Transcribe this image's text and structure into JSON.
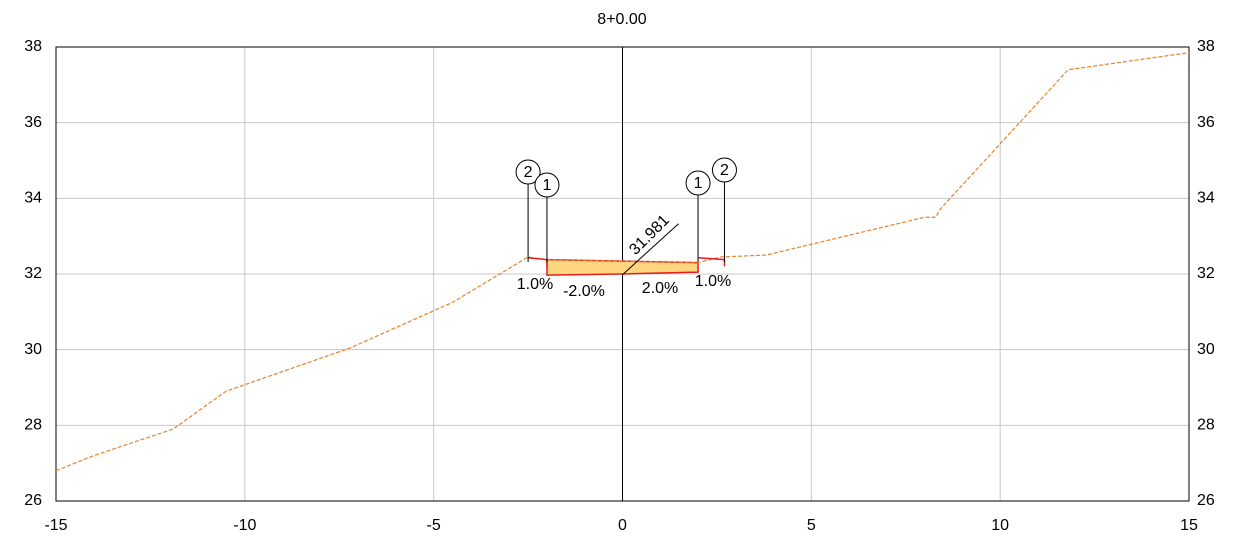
{
  "chart_data": {
    "type": "line",
    "title": "8+0.00",
    "xlim": [
      -15,
      15
    ],
    "ylim": [
      26,
      38
    ],
    "xticks": [
      -15,
      -10,
      -5,
      0,
      5,
      10,
      15
    ],
    "yticks": [
      26,
      28,
      30,
      32,
      34,
      36,
      38
    ],
    "grid": true,
    "series": [
      {
        "color": "#e8822a",
        "x": [
          -15,
          -14,
          -11.9,
          -10.5,
          -7.2,
          -4.5,
          -2.5,
          -2.0,
          2.0,
          2.6,
          3.8,
          8.0,
          8.3,
          8.4,
          11.8,
          15
        ],
        "values": [
          26.8,
          27.2,
          27.9,
          28.9,
          30.05,
          31.25,
          32.45,
          32.38,
          32.3,
          32.45,
          32.5,
          33.5,
          33.5,
          33.7,
          37.4,
          37.85
        ]
      }
    ],
    "road": {
      "color": "#ffd680",
      "edge": "#e02020",
      "x": [
        -2.0,
        2.0,
        2.0,
        0,
        -2.0
      ],
      "values": [
        32.38,
        32.3,
        32.05,
        32.0,
        31.97
      ]
    },
    "point_labels": [
      {
        "label": "2",
        "x": -2.5
      },
      {
        "label": "1",
        "x": -2.0
      },
      {
        "label": "1",
        "x": 2.0
      },
      {
        "label": "2",
        "x": 2.7
      }
    ],
    "slope_labels": [
      "1.0%",
      "-2.0%",
      "2.0%",
      "1.0%"
    ],
    "elevation": 31.981
  }
}
